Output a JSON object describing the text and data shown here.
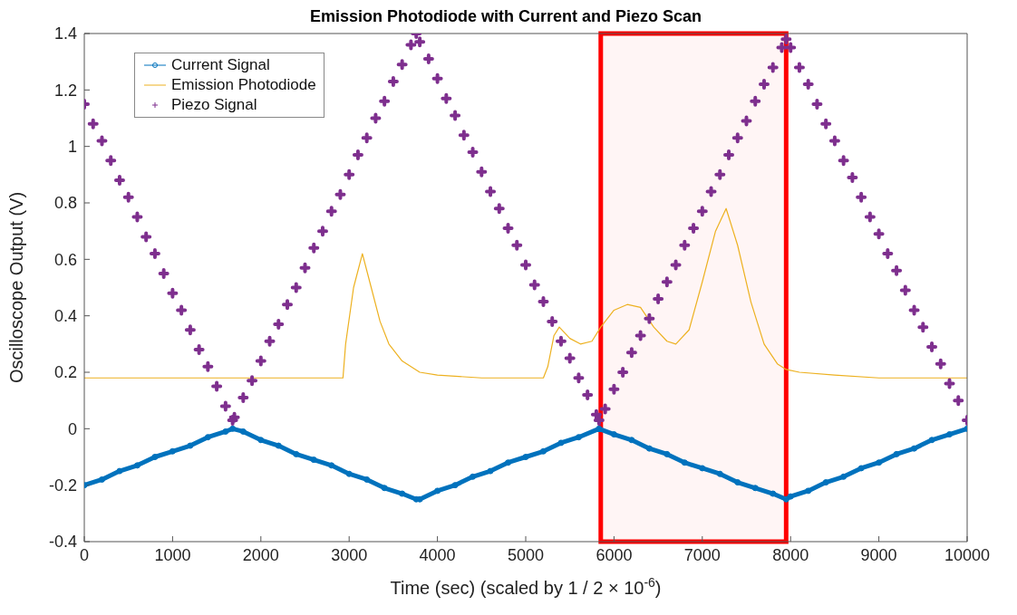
{
  "chart_data": {
    "type": "line",
    "title": "Emission Photodiode with Current and Piezo Scan",
    "xlabel": "Time (sec) (scaled by 1 / 2 × 10$^{-6}$)",
    "ylabel": "Oscilloscope Output (V)",
    "xlim": [
      0,
      10000
    ],
    "xticks": [
      0,
      1000,
      2000,
      3000,
      4000,
      5000,
      6000,
      7000,
      8000,
      9000,
      10000
    ],
    "ylim": [
      -0.4,
      1.4
    ],
    "yticks": [
      -0.4,
      -0.2,
      0,
      0.2,
      0.4,
      0.6,
      0.8,
      1,
      1.2,
      1.4
    ],
    "legend": "top left",
    "bands": [
      {
        "axis": "x",
        "from": 5850,
        "to": 7950,
        "color": "#ff0000"
      }
    ],
    "series": [
      {
        "name": "Current Signal",
        "marker": "circle",
        "color": "#0072bd",
        "x": [
          0,
          200,
          400,
          600,
          800,
          1000,
          1200,
          1400,
          1600,
          1680,
          1800,
          2000,
          2200,
          2400,
          2600,
          2800,
          3000,
          3200,
          3400,
          3600,
          3760,
          3800,
          4000,
          4200,
          4400,
          4600,
          4800,
          5000,
          5200,
          5400,
          5600,
          5830,
          6000,
          6200,
          6400,
          6600,
          6800,
          7000,
          7200,
          7400,
          7600,
          7800,
          7950,
          8000,
          8200,
          8400,
          8600,
          8800,
          9000,
          9200,
          9400,
          9600,
          9800,
          10000
        ],
        "values": [
          -0.2,
          -0.18,
          -0.15,
          -0.13,
          -0.1,
          -0.08,
          -0.06,
          -0.03,
          -0.01,
          0,
          -0.01,
          -0.04,
          -0.06,
          -0.09,
          -0.11,
          -0.13,
          -0.16,
          -0.18,
          -0.21,
          -0.23,
          -0.25,
          -0.25,
          -0.22,
          -0.2,
          -0.17,
          -0.15,
          -0.12,
          -0.1,
          -0.08,
          -0.05,
          -0.03,
          0,
          -0.02,
          -0.04,
          -0.07,
          -0.09,
          -0.12,
          -0.14,
          -0.16,
          -0.19,
          -0.21,
          -0.23,
          -0.25,
          -0.24,
          -0.22,
          -0.19,
          -0.17,
          -0.14,
          -0.12,
          -0.09,
          -0.07,
          -0.04,
          -0.02,
          0
        ]
      },
      {
        "name": "Emission Photodiode",
        "marker": "none",
        "color": "#edb120",
        "x": [
          0,
          1000,
          2000,
          2930,
          2960,
          3050,
          3150,
          3250,
          3350,
          3450,
          3600,
          3800,
          4000,
          4500,
          5200,
          5250,
          5320,
          5380,
          5500,
          5620,
          5750,
          5850,
          6000,
          6150,
          6300,
          6450,
          6600,
          6700,
          6850,
          7000,
          7150,
          7270,
          7400,
          7550,
          7700,
          7850,
          7950,
          8100,
          8500,
          9000,
          10000
        ],
        "values": [
          0.18,
          0.18,
          0.18,
          0.18,
          0.3,
          0.5,
          0.62,
          0.5,
          0.38,
          0.3,
          0.24,
          0.2,
          0.19,
          0.18,
          0.18,
          0.22,
          0.33,
          0.36,
          0.32,
          0.3,
          0.31,
          0.36,
          0.42,
          0.44,
          0.43,
          0.36,
          0.31,
          0.3,
          0.35,
          0.52,
          0.7,
          0.78,
          0.65,
          0.45,
          0.3,
          0.23,
          0.21,
          0.2,
          0.19,
          0.18,
          0.18
        ]
      },
      {
        "name": "Piezo Signal",
        "type": "scatter",
        "marker": "cross",
        "color": "#7e2f8e",
        "x": [
          0,
          100,
          200,
          300,
          400,
          500,
          600,
          700,
          800,
          900,
          1000,
          1100,
          1200,
          1300,
          1400,
          1500,
          1600,
          1680,
          1700,
          1800,
          1900,
          2000,
          2100,
          2200,
          2300,
          2400,
          2500,
          2600,
          2700,
          2800,
          2900,
          3000,
          3100,
          3200,
          3300,
          3400,
          3500,
          3600,
          3700,
          3760,
          3800,
          3900,
          4000,
          4100,
          4200,
          4300,
          4400,
          4500,
          4600,
          4700,
          4800,
          4900,
          5000,
          5100,
          5200,
          5300,
          5400,
          5500,
          5600,
          5700,
          5800,
          5830,
          5900,
          6000,
          6100,
          6200,
          6300,
          6400,
          6500,
          6600,
          6700,
          6800,
          6900,
          7000,
          7100,
          7200,
          7300,
          7400,
          7500,
          7600,
          7700,
          7800,
          7900,
          7950,
          8000,
          8100,
          8200,
          8300,
          8400,
          8500,
          8600,
          8700,
          8800,
          8900,
          9000,
          9100,
          9200,
          9300,
          9400,
          9500,
          9600,
          9700,
          9800,
          9900,
          10000
        ],
        "values": [
          1.15,
          1.08,
          1.02,
          0.95,
          0.88,
          0.82,
          0.75,
          0.68,
          0.62,
          0.55,
          0.48,
          0.42,
          0.35,
          0.28,
          0.22,
          0.15,
          0.08,
          0.03,
          0.04,
          0.11,
          0.17,
          0.24,
          0.31,
          0.37,
          0.44,
          0.5,
          0.57,
          0.64,
          0.7,
          0.77,
          0.83,
          0.9,
          0.97,
          1.03,
          1.1,
          1.16,
          1.23,
          1.29,
          1.36,
          1.4,
          1.37,
          1.31,
          1.24,
          1.17,
          1.11,
          1.04,
          0.98,
          0.91,
          0.84,
          0.78,
          0.71,
          0.65,
          0.58,
          0.51,
          0.45,
          0.38,
          0.31,
          0.25,
          0.18,
          0.12,
          0.05,
          0.03,
          0.07,
          0.14,
          0.2,
          0.27,
          0.33,
          0.39,
          0.46,
          0.52,
          0.58,
          0.65,
          0.71,
          0.77,
          0.84,
          0.9,
          0.97,
          1.03,
          1.09,
          1.16,
          1.22,
          1.28,
          1.35,
          1.38,
          1.35,
          1.28,
          1.22,
          1.15,
          1.08,
          1.02,
          0.95,
          0.89,
          0.82,
          0.75,
          0.69,
          0.62,
          0.56,
          0.49,
          0.42,
          0.36,
          0.29,
          0.23,
          0.16,
          0.1,
          0.03
        ]
      }
    ]
  }
}
